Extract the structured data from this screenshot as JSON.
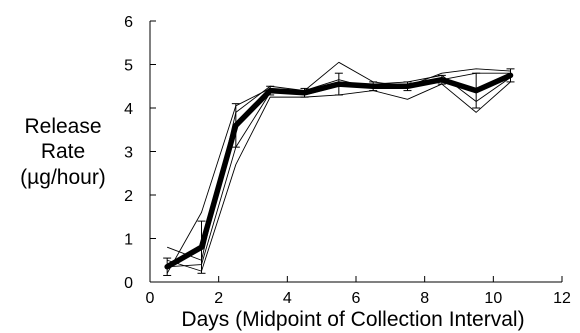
{
  "chart_data": {
    "type": "line",
    "xlabel": "Days (Midpoint of Collection Interval)",
    "ylabel_lines": [
      "Release",
      "Rate",
      "(µg/hour)"
    ],
    "xlim": [
      0,
      12
    ],
    "ylim": [
      0,
      6
    ],
    "x_ticks": [
      0,
      2,
      4,
      6,
      8,
      10,
      12
    ],
    "y_ticks": [
      0,
      1,
      2,
      3,
      4,
      5,
      6
    ],
    "grid": false,
    "x": [
      0.5,
      1.5,
      2.5,
      3.5,
      4.5,
      5.5,
      6.5,
      7.5,
      8.5,
      9.5,
      10.5
    ],
    "series": [
      {
        "role": "mean",
        "values": [
          0.35,
          0.8,
          3.6,
          4.4,
          4.35,
          4.55,
          4.5,
          4.5,
          4.65,
          4.4,
          4.75
        ],
        "error": [
          0.2,
          0.6,
          0.5,
          0.1,
          0.1,
          0.25,
          0.1,
          0.1,
          0.1,
          0.4,
          0.15
        ]
      },
      {
        "role": "individual",
        "values": [
          0.8,
          0.5,
          3.9,
          4.5,
          4.4,
          5.05,
          4.6,
          4.5,
          4.8,
          4.9,
          4.85
        ]
      },
      {
        "role": "individual",
        "values": [
          0.2,
          1.6,
          4.05,
          4.45,
          4.3,
          4.5,
          4.55,
          4.6,
          4.75,
          4.15,
          4.7
        ]
      },
      {
        "role": "individual",
        "values": [
          0.5,
          0.25,
          2.7,
          4.25,
          4.25,
          4.3,
          4.4,
          4.2,
          4.55,
          3.9,
          4.6
        ]
      },
      {
        "role": "individual",
        "values": [
          0.35,
          0.4,
          3.1,
          4.35,
          4.4,
          4.65,
          4.45,
          4.55,
          4.65,
          4.8,
          4.8
        ]
      }
    ]
  }
}
